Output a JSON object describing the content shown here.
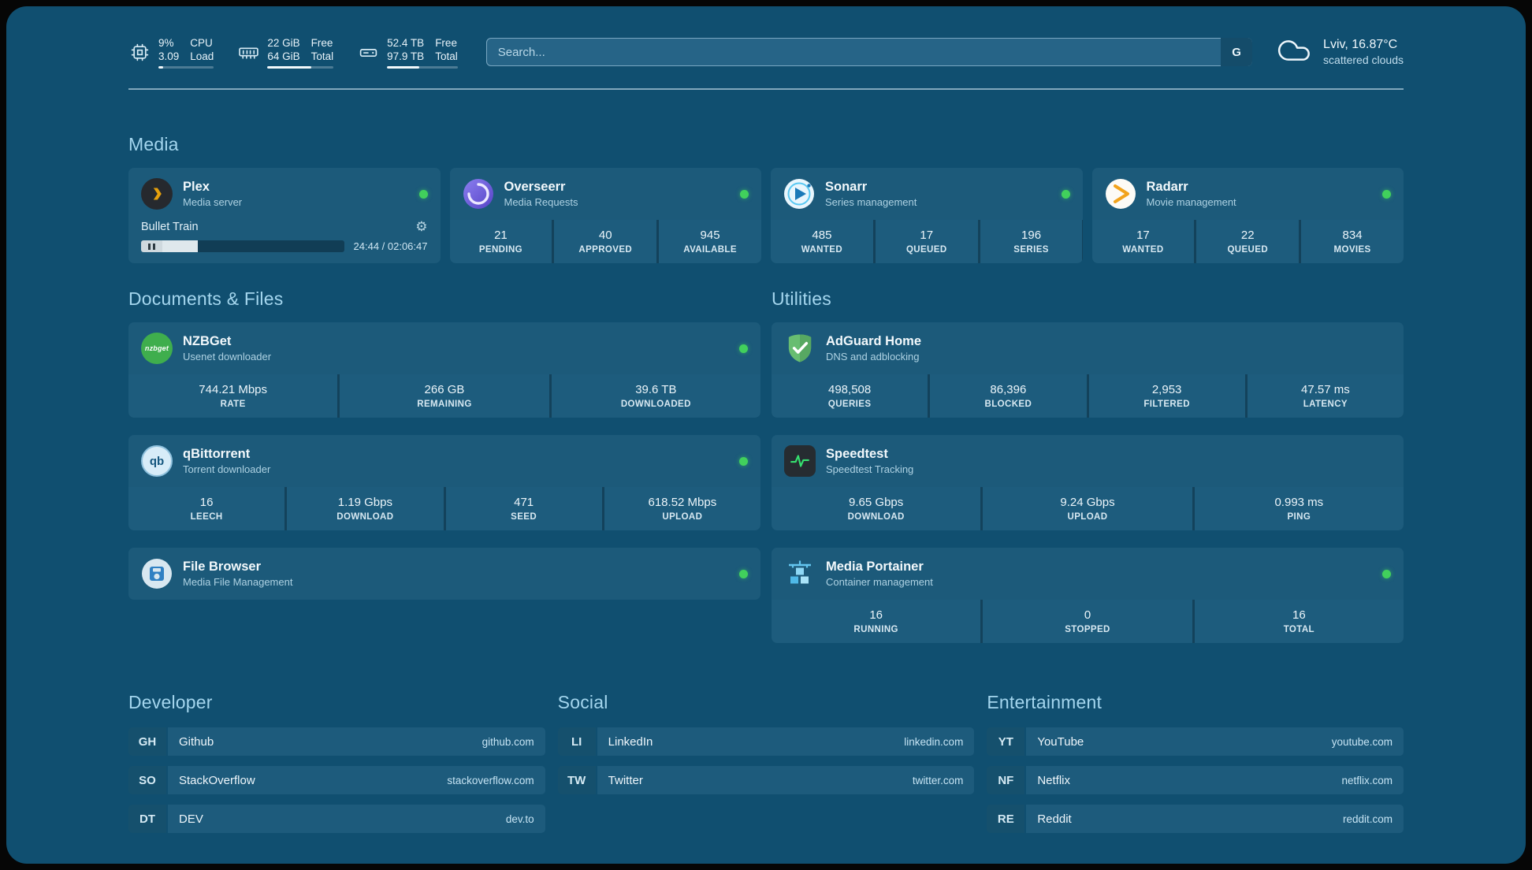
{
  "colors": {
    "page_bg": "#104f70",
    "card_bg": "#1c5a7a",
    "status_online_green": "#41d05c"
  },
  "topbar": {
    "resources": [
      {
        "id": "cpu",
        "line1_value": "9%",
        "line2_value": "3.09",
        "line1_label": "CPU",
        "line2_label": "Load",
        "progress": 9
      },
      {
        "id": "memory",
        "line1_value": "22 GiB",
        "line2_value": "64 GiB",
        "line1_label": "Free",
        "line2_label": "Total",
        "progress": 66
      },
      {
        "id": "disk",
        "line1_value": "52.4 TB",
        "line2_value": "97.9 TB",
        "line1_label": "Free",
        "line2_label": "Total",
        "progress": 46
      }
    ],
    "search": {
      "placeholder": "Search...",
      "provider_button": "G"
    },
    "weather": {
      "location": "Lviv, 16.87°C",
      "condition": "scattered clouds"
    }
  },
  "sections": {
    "media": {
      "title": "Media",
      "plex": {
        "name": "Plex",
        "subtitle": "Media server",
        "status": "online",
        "now_playing": {
          "title": "Bullet Train",
          "time": "24:44 / 02:06:47",
          "progress": 19.5
        }
      },
      "overseerr": {
        "name": "Overseerr",
        "subtitle": "Media Requests",
        "status": "online",
        "stats": [
          {
            "value": "21",
            "label": "PENDING"
          },
          {
            "value": "40",
            "label": "APPROVED"
          },
          {
            "value": "945",
            "label": "AVAILABLE"
          }
        ]
      },
      "sonarr": {
        "name": "Sonarr",
        "subtitle": "Series management",
        "status": "online",
        "stats": [
          {
            "value": "485",
            "label": "WANTED"
          },
          {
            "value": "17",
            "label": "QUEUED"
          },
          {
            "value": "196",
            "label": "SERIES"
          }
        ]
      },
      "radarr": {
        "name": "Radarr",
        "subtitle": "Movie management",
        "status": "online",
        "stats": [
          {
            "value": "17",
            "label": "WANTED"
          },
          {
            "value": "22",
            "label": "QUEUED"
          },
          {
            "value": "834",
            "label": "MOVIES"
          }
        ]
      }
    },
    "documents": {
      "title": "Documents & Files",
      "nzbget": {
        "name": "NZBGet",
        "subtitle": "Usenet downloader",
        "status": "online",
        "icon_text": "nzbget",
        "stats": [
          {
            "value": "744.21 Mbps",
            "label": "RATE"
          },
          {
            "value": "266 GB",
            "label": "REMAINING"
          },
          {
            "value": "39.6 TB",
            "label": "DOWNLOADED"
          }
        ]
      },
      "qbittorrent": {
        "name": "qBittorrent",
        "subtitle": "Torrent downloader",
        "status": "online",
        "icon_text": "qb",
        "stats": [
          {
            "value": "16",
            "label": "LEECH"
          },
          {
            "value": "1.19 Gbps",
            "label": "DOWNLOAD"
          },
          {
            "value": "471",
            "label": "SEED"
          },
          {
            "value": "618.52 Mbps",
            "label": "UPLOAD"
          }
        ]
      },
      "filebrowser": {
        "name": "File Browser",
        "subtitle": "Media File Management",
        "status": "online"
      }
    },
    "utilities": {
      "title": "Utilities",
      "adguard": {
        "name": "AdGuard Home",
        "subtitle": "DNS and adblocking",
        "stats": [
          {
            "value": "498,508",
            "label": "QUERIES"
          },
          {
            "value": "86,396",
            "label": "BLOCKED"
          },
          {
            "value": "2,953",
            "label": "FILTERED"
          },
          {
            "value": "47.57 ms",
            "label": "LATENCY"
          }
        ]
      },
      "speedtest": {
        "name": "Speedtest",
        "subtitle": "Speedtest Tracking",
        "stats": [
          {
            "value": "9.65 Gbps",
            "label": "DOWNLOAD"
          },
          {
            "value": "9.24 Gbps",
            "label": "UPLOAD"
          },
          {
            "value": "0.993 ms",
            "label": "PING"
          }
        ]
      },
      "portainer": {
        "name": "Media Portainer",
        "subtitle": "Container management",
        "status": "online",
        "stats": [
          {
            "value": "16",
            "label": "RUNNING"
          },
          {
            "value": "0",
            "label": "STOPPED"
          },
          {
            "value": "16",
            "label": "TOTAL"
          }
        ]
      }
    },
    "bookmarks": {
      "developer": {
        "title": "Developer",
        "items": [
          {
            "abbr": "GH",
            "name": "Github",
            "url": "github.com"
          },
          {
            "abbr": "SO",
            "name": "StackOverflow",
            "url": "stackoverflow.com"
          },
          {
            "abbr": "DT",
            "name": "DEV",
            "url": "dev.to"
          }
        ]
      },
      "social": {
        "title": "Social",
        "items": [
          {
            "abbr": "LI",
            "name": "LinkedIn",
            "url": "linkedin.com"
          },
          {
            "abbr": "TW",
            "name": "Twitter",
            "url": "twitter.com"
          }
        ]
      },
      "entertainment": {
        "title": "Entertainment",
        "items": [
          {
            "abbr": "YT",
            "name": "YouTube",
            "url": "youtube.com"
          },
          {
            "abbr": "NF",
            "name": "Netflix",
            "url": "netflix.com"
          },
          {
            "abbr": "RE",
            "name": "Reddit",
            "url": "reddit.com"
          }
        ]
      }
    }
  }
}
